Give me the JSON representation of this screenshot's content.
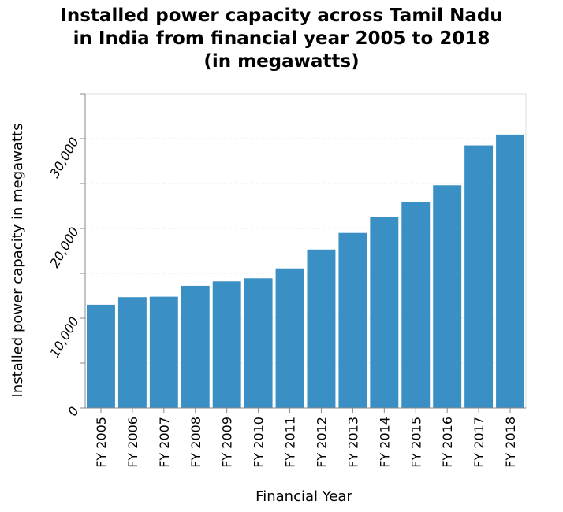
{
  "chart_data": {
    "type": "bar",
    "title_lines": [
      "Installed power capacity across Tamil Nadu",
      "in India from financial year 2005 to 2018",
      "(in megawatts)"
    ],
    "xlabel": "Financial Year",
    "ylabel": "Installed power capacity in megawatts",
    "categories": [
      "FY 2005",
      "FY 2006",
      "FY 2007",
      "FY 2008",
      "FY 2009",
      "FY 2010",
      "FY 2011",
      "FY 2012",
      "FY 2013",
      "FY 2014",
      "FY 2015",
      "FY 2016",
      "FY 2017",
      "FY 2018"
    ],
    "values": [
      11500,
      12350,
      12400,
      13600,
      14100,
      14450,
      15550,
      17650,
      19500,
      21300,
      22950,
      24800,
      29250,
      30450
    ],
    "yticks": [
      0,
      10000,
      20000,
      30000
    ],
    "ytick_labels": [
      "0",
      "10,000",
      "20,000",
      "30,000"
    ],
    "ylim": [
      0,
      35000
    ],
    "bar_color": "#3a8fc4",
    "grid": true
  }
}
